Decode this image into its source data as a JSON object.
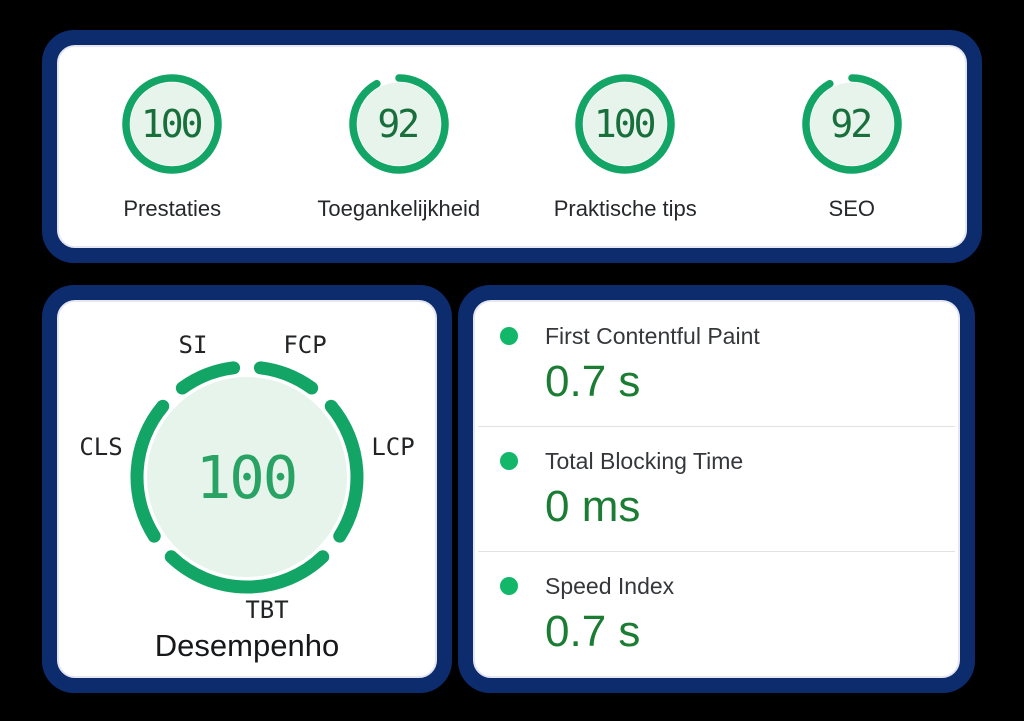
{
  "theme": {
    "background": "#000000",
    "card_border": "#0c2c6e",
    "card_bg": "#ffffff",
    "card_rim": "#e6e6f1",
    "gauge_ring": "#13a565",
    "gauge_fill": "#e6f4ec",
    "score_text": "#186f3c",
    "big_score_text": "#29a363",
    "metric_value": "#1a7d33",
    "metric_dot": "#12b76a",
    "label_text": "#26282b",
    "name_text": "#35373b",
    "tag_text": "#222426",
    "title_text": "#17181a",
    "divider": "#e2e2e5"
  },
  "summary_card": {
    "gauges": [
      {
        "score": "100",
        "label": "Prestaties"
      },
      {
        "score": "92",
        "label": "Toegankelijkheid"
      },
      {
        "score": "100",
        "label": "Praktische tips"
      },
      {
        "score": "92",
        "label": "SEO"
      }
    ]
  },
  "performance_card": {
    "score": "100",
    "title": "Desempenho",
    "tags": {
      "si": "SI",
      "fcp": "FCP",
      "cls": "CLS",
      "lcp": "LCP",
      "tbt": "TBT"
    },
    "segment_weights": {
      "fcp": 10,
      "lcp": 25,
      "tbt": 30,
      "cls": 25,
      "si": 10
    }
  },
  "metrics_card": {
    "rows": [
      {
        "name": "First Contentful Paint",
        "value": "0.7 s"
      },
      {
        "name": "Total Blocking Time",
        "value": "0 ms"
      },
      {
        "name": "Speed Index",
        "value": "0.7 s"
      }
    ]
  },
  "chart_data": [
    {
      "type": "gauge",
      "title": "Category scores",
      "range": [
        0,
        100
      ],
      "items": [
        {
          "label": "Prestaties",
          "value": 100
        },
        {
          "label": "Toegankelijkheid",
          "value": 92
        },
        {
          "label": "Praktische tips",
          "value": 100
        },
        {
          "label": "SEO",
          "value": 92
        }
      ]
    },
    {
      "type": "gauge",
      "title": "Desempenho",
      "value": 100,
      "range": [
        0,
        100
      ],
      "segments": [
        "FCP",
        "LCP",
        "TBT",
        "CLS",
        "SI"
      ]
    },
    {
      "type": "table",
      "title": "Metrics",
      "rows": [
        [
          "First Contentful Paint",
          "0.7 s"
        ],
        [
          "Total Blocking Time",
          "0 ms"
        ],
        [
          "Speed Index",
          "0.7 s"
        ]
      ]
    }
  ]
}
